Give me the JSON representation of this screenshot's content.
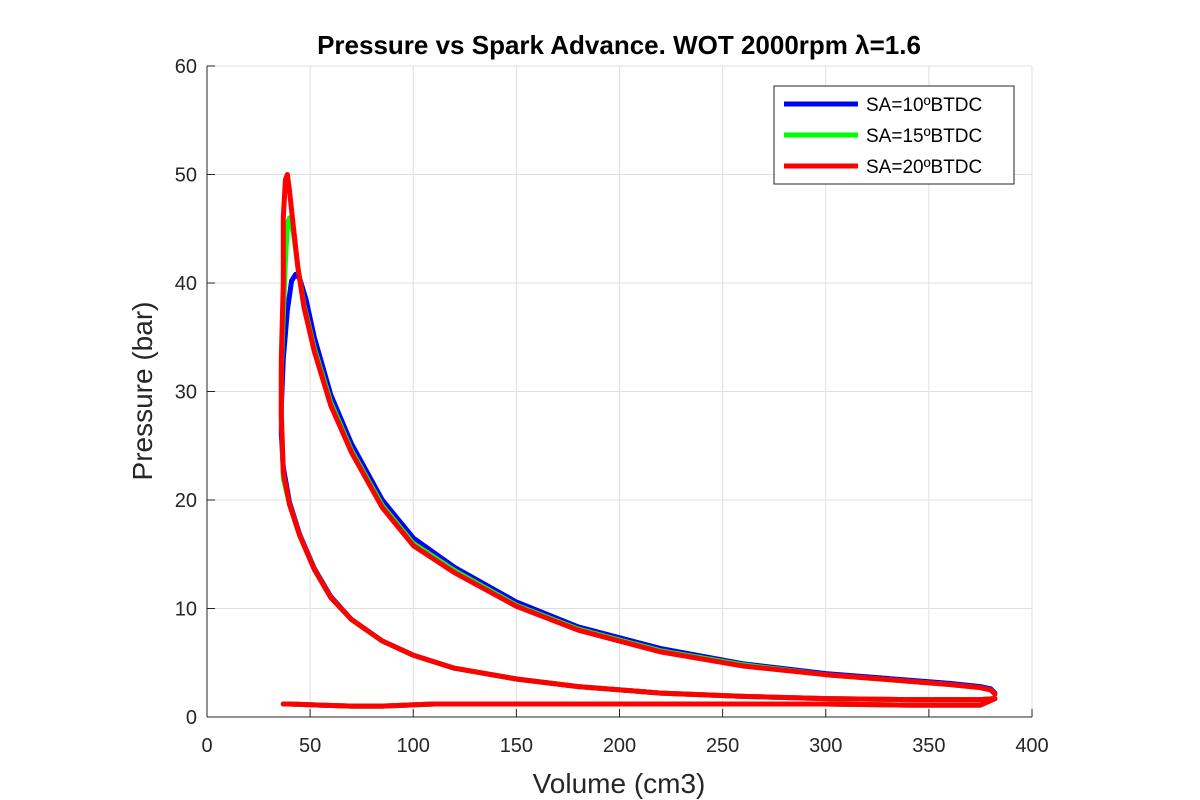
{
  "chart_data": {
    "type": "line",
    "title": "Pressure vs Spark Advance. WOT 2000rpm λ=1.6",
    "xlabel": "Volume (cm3)",
    "ylabel": "Pressure (bar)",
    "xlim": [
      0,
      400
    ],
    "ylim": [
      0,
      60
    ],
    "xticks": [
      "0",
      "50",
      "100",
      "150",
      "200",
      "250",
      "300",
      "350",
      "400"
    ],
    "yticks": [
      "0",
      "10",
      "20",
      "30",
      "40",
      "50",
      "60"
    ],
    "grid": true,
    "legend_position": "top-right",
    "series": [
      {
        "name": "SA=10ºBTDC",
        "color": "#0000ff",
        "x": [
          382,
          380,
          375,
          360,
          340,
          300,
          260,
          220,
          180,
          150,
          120,
          100,
          85,
          70,
          60,
          52,
          48,
          45,
          43,
          41,
          39,
          37,
          36,
          36,
          37,
          40,
          45,
          52,
          60,
          70,
          85,
          100,
          120,
          150,
          180,
          220,
          260,
          300,
          340,
          375,
          382,
          375,
          340,
          300,
          250,
          200,
          150,
          110,
          85,
          70,
          55,
          40,
          37
        ],
        "y": [
          2.2,
          2.6,
          2.8,
          3.1,
          3.4,
          4.0,
          4.9,
          6.3,
          8.3,
          10.6,
          13.8,
          16.5,
          20.0,
          25.2,
          29.7,
          35.0,
          38.5,
          40.4,
          40.8,
          40.2,
          37.5,
          33.0,
          28.5,
          26.0,
          23.0,
          19.8,
          16.8,
          13.7,
          11.1,
          9.0,
          7.0,
          5.7,
          4.5,
          3.5,
          2.8,
          2.2,
          1.9,
          1.7,
          1.6,
          1.6,
          1.7,
          1.1,
          1.1,
          1.2,
          1.2,
          1.2,
          1.2,
          1.2,
          1.0,
          1.0,
          1.1,
          1.2,
          1.2
        ]
      },
      {
        "name": "SA=15ºBTDC",
        "color": "#00ff00",
        "x": [
          382,
          380,
          375,
          360,
          340,
          300,
          260,
          220,
          180,
          150,
          120,
          100,
          85,
          70,
          60,
          52,
          47,
          44,
          42,
          40,
          39,
          38,
          37,
          36,
          36,
          37,
          40,
          45,
          52,
          60,
          70,
          85,
          100,
          120,
          150,
          180,
          220,
          260,
          300,
          340,
          375,
          382,
          375,
          340,
          300,
          250,
          200,
          150,
          110,
          85,
          70,
          55,
          40,
          37
        ],
        "y": [
          2.1,
          2.5,
          2.7,
          3.0,
          3.3,
          3.9,
          4.8,
          6.1,
          8.1,
          10.3,
          13.5,
          16.0,
          19.5,
          24.6,
          29.0,
          34.0,
          38.0,
          41.5,
          44.5,
          46.0,
          45.5,
          42.0,
          37.0,
          32.0,
          28.0,
          22.0,
          19.6,
          16.7,
          13.6,
          11.0,
          9.0,
          7.0,
          5.7,
          4.5,
          3.5,
          2.8,
          2.2,
          1.9,
          1.7,
          1.6,
          1.6,
          1.7,
          1.1,
          1.1,
          1.2,
          1.2,
          1.2,
          1.2,
          1.2,
          1.0,
          1.0,
          1.1,
          1.2,
          1.2
        ]
      },
      {
        "name": "SA=20ºBTDC",
        "color": "#ff0000",
        "x": [
          382,
          380,
          375,
          360,
          340,
          300,
          260,
          220,
          180,
          150,
          120,
          100,
          85,
          70,
          60,
          52,
          47,
          44,
          42,
          40,
          39,
          38,
          37,
          37,
          36,
          36,
          37,
          40,
          45,
          52,
          60,
          70,
          85,
          100,
          120,
          150,
          180,
          220,
          260,
          300,
          340,
          375,
          382,
          375,
          340,
          300,
          250,
          200,
          150,
          110,
          85,
          70,
          55,
          40,
          37
        ],
        "y": [
          2.1,
          2.5,
          2.7,
          3.0,
          3.3,
          3.9,
          4.7,
          6.0,
          8.0,
          10.2,
          13.3,
          15.8,
          19.3,
          24.4,
          28.7,
          33.7,
          37.8,
          41.5,
          45.0,
          48.5,
          50.0,
          49.5,
          46.0,
          40.0,
          33.0,
          28.0,
          22.5,
          19.6,
          16.7,
          13.6,
          11.0,
          9.0,
          7.0,
          5.7,
          4.5,
          3.5,
          2.8,
          2.2,
          1.9,
          1.7,
          1.6,
          1.6,
          1.7,
          1.1,
          1.1,
          1.2,
          1.2,
          1.2,
          1.2,
          1.2,
          1.0,
          1.0,
          1.1,
          1.2,
          1.2
        ]
      }
    ]
  }
}
